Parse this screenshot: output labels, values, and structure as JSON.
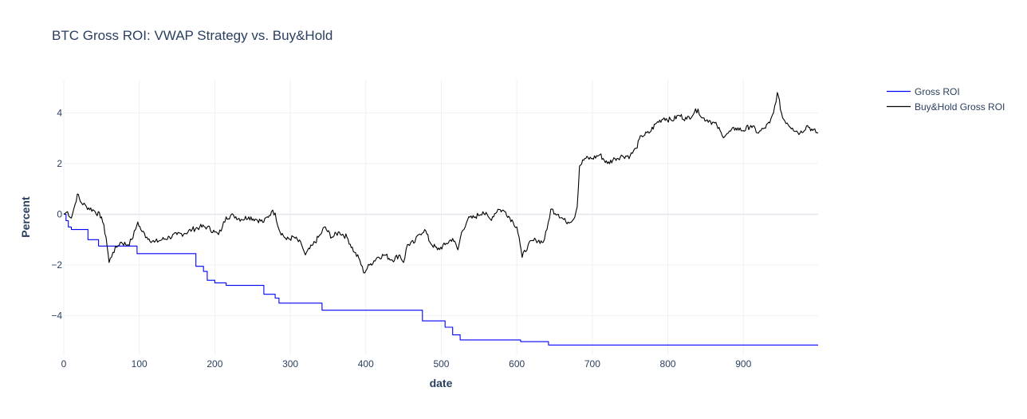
{
  "chart_data": {
    "type": "line",
    "title": "BTC Gross ROI: VWAP Strategy vs. Buy&Hold",
    "xlabel": "date",
    "ylabel": "Percent",
    "xlim": [
      0,
      999
    ],
    "ylim": [
      -5.55,
      5.3
    ],
    "x_ticks": [
      0,
      100,
      200,
      300,
      400,
      500,
      600,
      700,
      800,
      900
    ],
    "y_ticks": [
      -4,
      -2,
      0,
      2,
      4
    ],
    "grid": true,
    "legend_position": "top-right",
    "series": [
      {
        "name": "Gross ROI",
        "color": "#0000ff",
        "step": true,
        "points": [
          [
            0,
            0
          ],
          [
            3,
            -0.25
          ],
          [
            6,
            -0.5
          ],
          [
            10,
            -0.6
          ],
          [
            30,
            -0.6
          ],
          [
            32,
            -1.0
          ],
          [
            44,
            -1.0
          ],
          [
            46,
            -1.25
          ],
          [
            95,
            -1.25
          ],
          [
            97,
            -1.55
          ],
          [
            170,
            -1.55
          ],
          [
            175,
            -2.05
          ],
          [
            185,
            -2.25
          ],
          [
            190,
            -2.6
          ],
          [
            200,
            -2.7
          ],
          [
            215,
            -2.8
          ],
          [
            260,
            -2.8
          ],
          [
            265,
            -3.15
          ],
          [
            280,
            -3.3
          ],
          [
            285,
            -3.5
          ],
          [
            340,
            -3.5
          ],
          [
            342,
            -3.78
          ],
          [
            470,
            -3.78
          ],
          [
            475,
            -4.2
          ],
          [
            500,
            -4.2
          ],
          [
            505,
            -4.45
          ],
          [
            515,
            -4.75
          ],
          [
            525,
            -4.95
          ],
          [
            600,
            -4.95
          ],
          [
            605,
            -5.02
          ],
          [
            640,
            -5.02
          ],
          [
            642,
            -5.15
          ],
          [
            999,
            -5.15
          ]
        ]
      },
      {
        "name": "Buy&Hold Gross ROI",
        "color": "#000000",
        "step": false,
        "points": [
          [
            0,
            0
          ],
          [
            5,
            0.1
          ],
          [
            10,
            -0.15
          ],
          [
            15,
            0.4
          ],
          [
            18,
            0.8
          ],
          [
            22,
            0.5
          ],
          [
            30,
            0.3
          ],
          [
            40,
            0.15
          ],
          [
            50,
            -0.1
          ],
          [
            56,
            -0.9
          ],
          [
            60,
            -1.9
          ],
          [
            65,
            -1.5
          ],
          [
            70,
            -1.3
          ],
          [
            75,
            -1.1
          ],
          [
            85,
            -1.2
          ],
          [
            90,
            -1.0
          ],
          [
            95,
            -0.6
          ],
          [
            98,
            -0.3
          ],
          [
            102,
            -0.6
          ],
          [
            110,
            -0.9
          ],
          [
            120,
            -1.1
          ],
          [
            130,
            -1.0
          ],
          [
            140,
            -0.9
          ],
          [
            150,
            -0.8
          ],
          [
            160,
            -0.75
          ],
          [
            170,
            -0.6
          ],
          [
            180,
            -0.5
          ],
          [
            190,
            -0.5
          ],
          [
            200,
            -0.7
          ],
          [
            205,
            -0.8
          ],
          [
            210,
            -0.5
          ],
          [
            215,
            -0.1
          ],
          [
            225,
            -0.05
          ],
          [
            235,
            -0.2
          ],
          [
            245,
            -0.1
          ],
          [
            255,
            -0.2
          ],
          [
            265,
            -0.3
          ],
          [
            275,
            0.1
          ],
          [
            280,
            0.05
          ],
          [
            285,
            -0.6
          ],
          [
            295,
            -1.0
          ],
          [
            305,
            -0.9
          ],
          [
            315,
            -1.2
          ],
          [
            320,
            -1.6
          ],
          [
            330,
            -1.2
          ],
          [
            340,
            -0.8
          ],
          [
            345,
            -0.5
          ],
          [
            355,
            -0.9
          ],
          [
            365,
            -0.7
          ],
          [
            375,
            -0.9
          ],
          [
            385,
            -1.5
          ],
          [
            392,
            -1.8
          ],
          [
            397,
            -2.3
          ],
          [
            405,
            -2.0
          ],
          [
            415,
            -1.7
          ],
          [
            425,
            -1.6
          ],
          [
            435,
            -1.8
          ],
          [
            445,
            -1.6
          ],
          [
            450,
            -1.9
          ],
          [
            455,
            -1.2
          ],
          [
            465,
            -1.1
          ],
          [
            470,
            -0.8
          ],
          [
            478,
            -0.6
          ],
          [
            485,
            -1.1
          ],
          [
            495,
            -1.4
          ],
          [
            505,
            -1.2
          ],
          [
            515,
            -0.95
          ],
          [
            522,
            -1.4
          ],
          [
            527,
            -0.7
          ],
          [
            535,
            -0.2
          ],
          [
            545,
            -0.1
          ],
          [
            555,
            0.1
          ],
          [
            565,
            -0.2
          ],
          [
            575,
            0.2
          ],
          [
            585,
            0.1
          ],
          [
            595,
            -0.3
          ],
          [
            600,
            -0.5
          ],
          [
            603,
            -0.9
          ],
          [
            607,
            -1.7
          ],
          [
            615,
            -1.2
          ],
          [
            625,
            -1.0
          ],
          [
            635,
            -1.1
          ],
          [
            640,
            -0.6
          ],
          [
            645,
            0.2
          ],
          [
            655,
            0.0
          ],
          [
            665,
            -0.3
          ],
          [
            675,
            -0.2
          ],
          [
            680,
            0.3
          ],
          [
            683,
            1.9
          ],
          [
            690,
            2.2
          ],
          [
            700,
            2.2
          ],
          [
            710,
            2.35
          ],
          [
            720,
            2.0
          ],
          [
            730,
            2.2
          ],
          [
            740,
            2.3
          ],
          [
            750,
            2.3
          ],
          [
            758,
            2.6
          ],
          [
            765,
            3.1
          ],
          [
            775,
            3.2
          ],
          [
            785,
            3.6
          ],
          [
            795,
            3.8
          ],
          [
            805,
            3.7
          ],
          [
            815,
            3.9
          ],
          [
            825,
            3.75
          ],
          [
            835,
            4.0
          ],
          [
            840,
            4.15
          ],
          [
            845,
            3.8
          ],
          [
            855,
            3.7
          ],
          [
            865,
            3.5
          ],
          [
            872,
            3.1
          ],
          [
            880,
            3.2
          ],
          [
            890,
            3.4
          ],
          [
            900,
            3.3
          ],
          [
            910,
            3.5
          ],
          [
            920,
            3.2
          ],
          [
            928,
            3.4
          ],
          [
            935,
            3.6
          ],
          [
            940,
            4.0
          ],
          [
            945,
            4.8
          ],
          [
            952,
            3.8
          ],
          [
            958,
            3.6
          ],
          [
            965,
            3.4
          ],
          [
            975,
            3.2
          ],
          [
            985,
            3.5
          ],
          [
            992,
            3.3
          ],
          [
            999,
            3.2
          ]
        ]
      }
    ]
  }
}
